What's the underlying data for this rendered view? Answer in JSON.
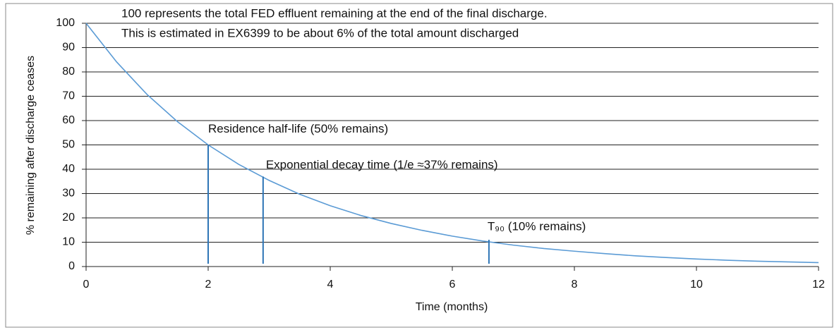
{
  "chart_data": {
    "type": "line",
    "annotations": [
      "100 represents the total FED effluent remaining at the end of the final discharge.",
      "This is estimated in EX6399 to be about 6% of the total amount discharged"
    ],
    "x_label": "Time (months)",
    "y_label": "% remaining after discharge ceases",
    "x": [
      0,
      0.5,
      1,
      1.5,
      2,
      2.5,
      3,
      3.5,
      4,
      4.5,
      5,
      5.5,
      6,
      6.5,
      7,
      7.5,
      8,
      8.5,
      9,
      9.5,
      10,
      10.5,
      11,
      11.5,
      12
    ],
    "series": [
      {
        "color": "#5b9bd5",
        "values": [
          100,
          84.1,
          70.7,
          59.5,
          50,
          42,
          35.4,
          29.7,
          25,
          21,
          17.7,
          14.9,
          12.5,
          10.5,
          8.8,
          7.4,
          6.3,
          5.3,
          4.4,
          3.7,
          3.1,
          2.6,
          2.2,
          1.9,
          1.6
        ]
      }
    ],
    "reference_lines": [
      {
        "x": 2,
        "y": 50,
        "label": "Residence half-life (50% remains)"
      },
      {
        "x": 2.9,
        "y": 37,
        "label": "Exponential decay time (1/e ≈37% remains)"
      },
      {
        "x": 6.6,
        "y": 11,
        "label": "T₉₀ (10% remains)"
      }
    ],
    "reference_color": "#2e75b6",
    "xlim": [
      0,
      12
    ],
    "xticks": [
      0,
      2,
      4,
      6,
      8,
      10,
      12
    ],
    "ylim": [
      0,
      100
    ],
    "yticks": [
      0,
      10,
      20,
      30,
      40,
      50,
      60,
      70,
      80,
      90,
      100
    ],
    "grid": true
  }
}
